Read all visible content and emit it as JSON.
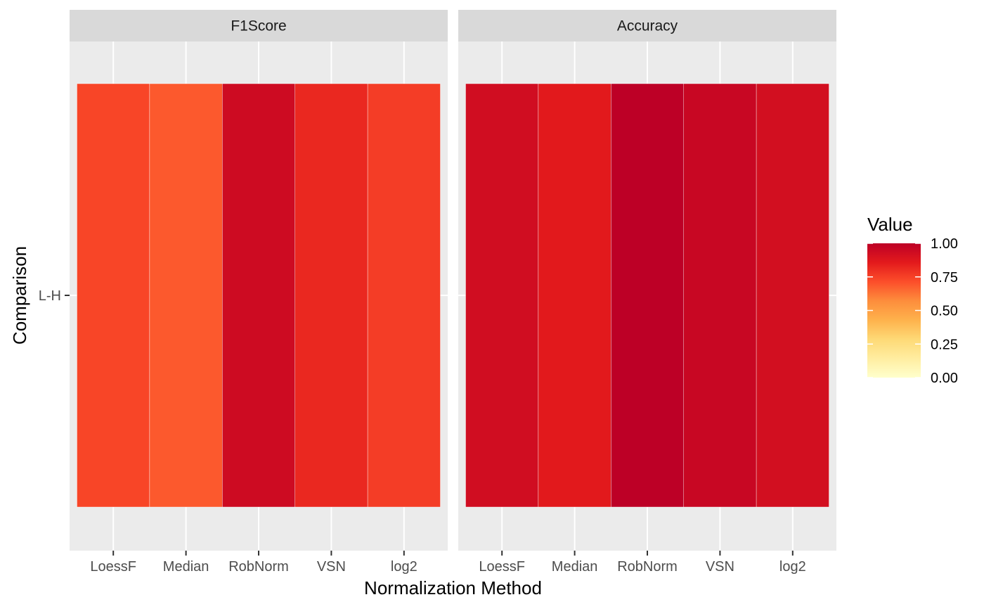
{
  "chart_data": {
    "type": "heatmap",
    "xlabel": "Normalization Method",
    "ylabel": "Comparison",
    "x_categories": [
      "LoessF",
      "Median",
      "RobNorm",
      "VSN",
      "log2"
    ],
    "y_categories": [
      "L-H"
    ],
    "facets": [
      {
        "title": "F1Score",
        "values": [
          0.74,
          0.69,
          0.94,
          0.82,
          0.76
        ]
      },
      {
        "title": "Accuracy",
        "values": [
          0.93,
          0.86,
          1.0,
          0.96,
          0.92
        ]
      }
    ],
    "legend": {
      "title": "Value",
      "range": [
        0,
        1
      ],
      "ticks": [
        "0.00",
        "0.25",
        "0.50",
        "0.75",
        "1.00"
      ],
      "tick_values": [
        0,
        0.25,
        0.5,
        0.75,
        1.0
      ],
      "placement": "right"
    },
    "colorscale": [
      "#FFFFCC",
      "#FFEDA0",
      "#FED976",
      "#FEB24C",
      "#FD8D3C",
      "#FC4E2A",
      "#E31A1C",
      "#BD0026"
    ],
    "panel_background": "#EBEBEB",
    "strip_background": "#D9D9D9",
    "grid": true
  }
}
